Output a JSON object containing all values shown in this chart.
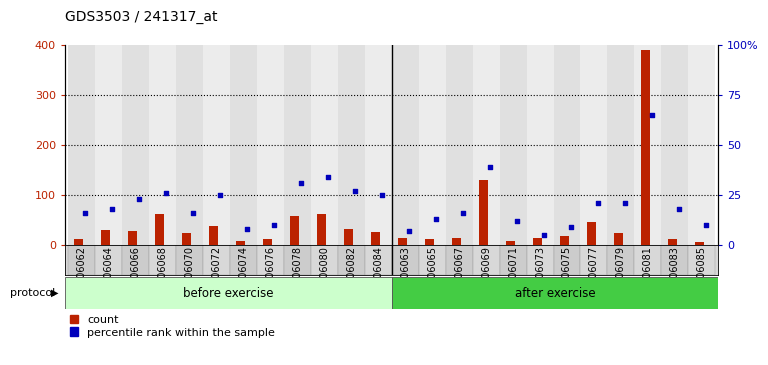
{
  "title": "GDS3503 / 241317_at",
  "samples": [
    "GSM306062",
    "GSM306064",
    "GSM306066",
    "GSM306068",
    "GSM306070",
    "GSM306072",
    "GSM306074",
    "GSM306076",
    "GSM306078",
    "GSM306080",
    "GSM306082",
    "GSM306084",
    "GSM306063",
    "GSM306065",
    "GSM306067",
    "GSM306069",
    "GSM306071",
    "GSM306073",
    "GSM306075",
    "GSM306077",
    "GSM306079",
    "GSM306081",
    "GSM306083",
    "GSM306085"
  ],
  "counts": [
    12,
    30,
    28,
    62,
    25,
    38,
    8,
    12,
    58,
    62,
    32,
    27,
    15,
    12,
    15,
    130,
    8,
    15,
    18,
    47,
    25,
    390,
    12,
    7
  ],
  "percentile_ranks_pct": [
    16,
    18,
    23,
    26,
    16,
    25,
    8,
    10,
    31,
    34,
    27,
    25,
    7,
    13,
    16,
    39,
    12,
    5,
    9,
    21,
    21,
    65,
    18,
    10
  ],
  "before_exercise_count": 12,
  "after_exercise_count": 12,
  "before_label": "before exercise",
  "after_label": "after exercise",
  "protocol_label": "protocol",
  "bar_color": "#bb2200",
  "dot_color": "#0000bb",
  "left_axis_color": "#bb2200",
  "right_axis_color": "#0000bb",
  "left_yticks": [
    0,
    100,
    200,
    300,
    400
  ],
  "right_yticks": [
    0,
    25,
    50,
    75,
    100
  ],
  "right_ytick_labels": [
    "0",
    "25",
    "50",
    "75",
    "100%"
  ],
  "ylim_left": [
    0,
    400
  ],
  "before_bg": "#ccffcc",
  "after_bg": "#44cc44",
  "title_fontsize": 10,
  "tick_fontsize": 7,
  "legend_fontsize": 8,
  "col_colors_even": "#e0e0e0",
  "col_colors_odd": "#ececec"
}
